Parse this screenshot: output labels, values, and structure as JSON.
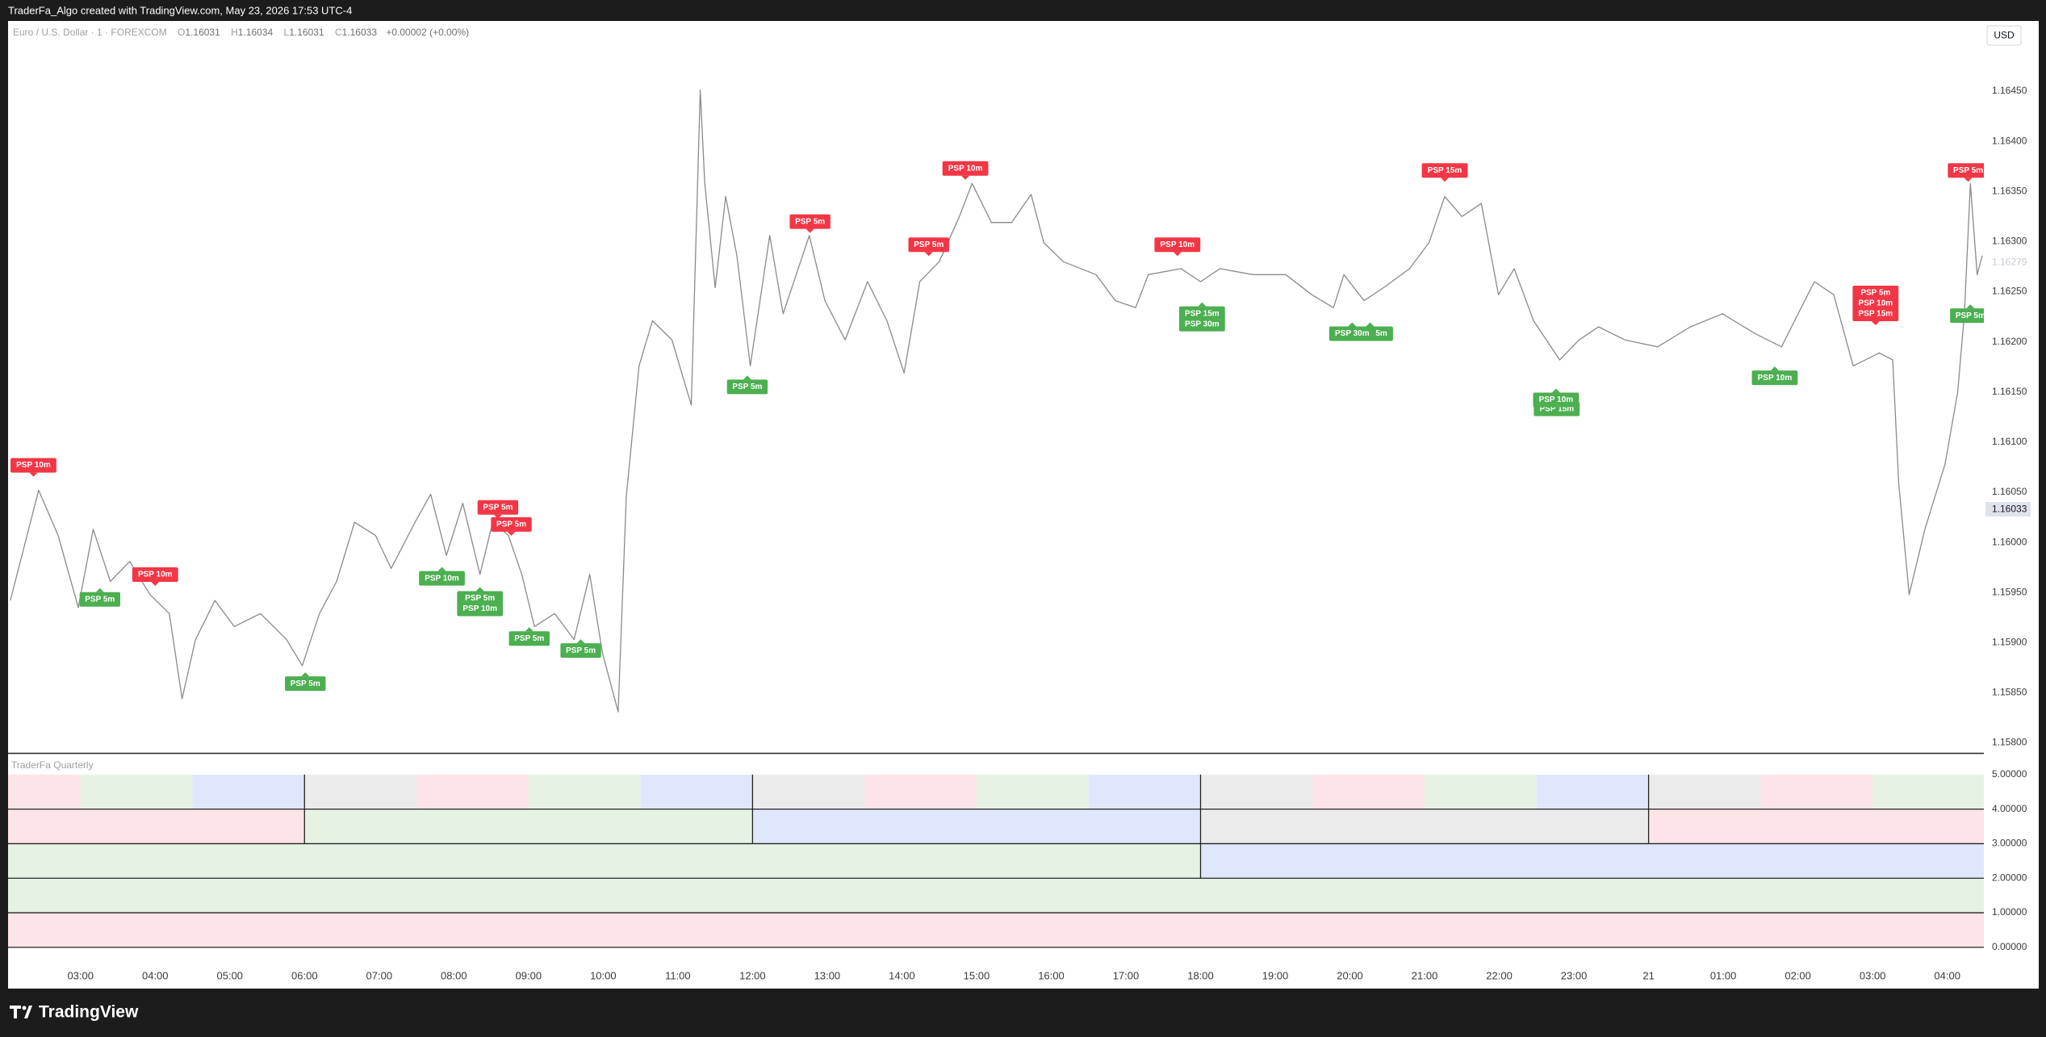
{
  "header": {
    "text": "TraderFa_Algo created with TradingView.com, May 23, 2026 17:53 UTC-4"
  },
  "currency_button": "USD",
  "footer": {
    "brand": "TradingView"
  },
  "chart_data": [
    {
      "type": "line",
      "title": "Euro / U.S. Dollar · 1 · FOREXCOM",
      "ohlc": [
        {
          "key": "O",
          "value": 1.16031
        },
        {
          "key": "H",
          "value": 1.16034
        },
        {
          "key": "L",
          "value": 1.16031
        },
        {
          "key": "C",
          "value": 1.16033
        }
      ],
      "change": "+0.00002 (+0.00%)",
      "xlim": [
        2.03,
        28.49
      ],
      "xticks": [
        {
          "value": 3,
          "label": "03:00"
        },
        {
          "value": 4,
          "label": "04:00"
        },
        {
          "value": 5,
          "label": "05:00"
        },
        {
          "value": 6,
          "label": "06:00"
        },
        {
          "value": 7,
          "label": "07:00"
        },
        {
          "value": 8,
          "label": "08:00"
        },
        {
          "value": 9,
          "label": "09:00"
        },
        {
          "value": 10,
          "label": "10:00"
        },
        {
          "value": 11,
          "label": "11:00"
        },
        {
          "value": 12,
          "label": "12:00"
        },
        {
          "value": 13,
          "label": "13:00"
        },
        {
          "value": 14,
          "label": "14:00"
        },
        {
          "value": 15,
          "label": "15:00"
        },
        {
          "value": 16,
          "label": "16:00"
        },
        {
          "value": 17,
          "label": "17:00"
        },
        {
          "value": 18,
          "label": "18:00"
        },
        {
          "value": 19,
          "label": "19:00"
        },
        {
          "value": 20,
          "label": "20:00"
        },
        {
          "value": 21,
          "label": "21:00"
        },
        {
          "value": 22,
          "label": "22:00"
        },
        {
          "value": 23,
          "label": "23:00"
        },
        {
          "value": 24,
          "label": "21"
        },
        {
          "value": 25,
          "label": "01:00"
        },
        {
          "value": 26,
          "label": "02:00"
        },
        {
          "value": 27,
          "label": "03:00"
        },
        {
          "value": 28,
          "label": "04:00"
        }
      ],
      "ylim": [
        1.1579,
        1.1652
      ],
      "yticks": [
        {
          "value": 1.158,
          "label": "1.15800"
        },
        {
          "value": 1.1585,
          "label": "1.15850"
        },
        {
          "value": 1.159,
          "label": "1.15900"
        },
        {
          "value": 1.1595,
          "label": "1.15950"
        },
        {
          "value": 1.16,
          "label": "1.16000"
        },
        {
          "value": 1.1605,
          "label": "1.16050"
        },
        {
          "value": 1.161,
          "label": "1.16100"
        },
        {
          "value": 1.1615,
          "label": "1.16150"
        },
        {
          "value": 1.162,
          "label": "1.16200"
        },
        {
          "value": 1.1625,
          "label": "1.16250"
        },
        {
          "value": 1.163,
          "label": "1.16300"
        },
        {
          "value": 1.1635,
          "label": "1.16350"
        },
        {
          "value": 1.164,
          "label": "1.16400"
        },
        {
          "value": 1.1645,
          "label": "1.16450"
        }
      ],
      "grid": false,
      "price_labels": [
        {
          "value": 1.16279,
          "style": "faint"
        },
        {
          "value": 1.16033,
          "style": "last"
        }
      ],
      "x": [
        2.06,
        2.44,
        2.7,
        2.97,
        3.17,
        3.4,
        3.66,
        3.93,
        4.19,
        4.36,
        4.54,
        4.8,
        5.06,
        5.41,
        5.76,
        5.97,
        6.2,
        6.43,
        6.67,
        6.95,
        7.16,
        7.48,
        7.69,
        7.9,
        8.12,
        8.35,
        8.52,
        8.73,
        8.91,
        9.08,
        9.35,
        9.61,
        9.82,
        9.99,
        10.2,
        10.31,
        10.48,
        10.66,
        10.92,
        11.18,
        11.3,
        11.36,
        11.5,
        11.64,
        11.79,
        11.97,
        12.23,
        12.41,
        12.76,
        12.97,
        13.24,
        13.54,
        13.8,
        14.03,
        14.24,
        14.5,
        14.77,
        14.94,
        15.2,
        15.47,
        15.73,
        15.9,
        16.16,
        16.6,
        16.86,
        17.13,
        17.3,
        17.74,
        18.0,
        18.26,
        18.7,
        19.14,
        19.49,
        19.78,
        19.92,
        20.19,
        20.45,
        20.8,
        21.06,
        21.27,
        21.5,
        21.76,
        21.99,
        22.2,
        22.46,
        22.81,
        23.07,
        23.33,
        23.68,
        24.12,
        24.56,
        24.99,
        25.43,
        25.78,
        26.22,
        26.48,
        26.74,
        27.09,
        27.27,
        27.35,
        27.49,
        27.7,
        27.97,
        28.14,
        28.23,
        28.31,
        28.4,
        28.47
      ],
      "series": [
        {
          "color": "#8a8a8a",
          "values": [
            1.15942,
            1.16052,
            1.16007,
            1.15935,
            1.16013,
            1.15961,
            1.15981,
            1.15948,
            1.15929,
            1.15844,
            1.15903,
            1.15942,
            1.15916,
            1.15929,
            1.15903,
            1.15877,
            1.15929,
            1.15961,
            1.1602,
            1.16007,
            1.15974,
            1.1602,
            1.16048,
            1.15987,
            1.16039,
            1.15968,
            1.1602,
            1.16007,
            1.15968,
            1.15916,
            1.15929,
            1.15903,
            1.15968,
            1.1589,
            1.15831,
            1.16046,
            1.16176,
            1.16221,
            1.16202,
            1.16137,
            1.16451,
            1.16358,
            1.16254,
            1.16345,
            1.16286,
            1.16176,
            1.16306,
            1.16228,
            1.16306,
            1.16241,
            1.16202,
            1.1626,
            1.16221,
            1.16169,
            1.1626,
            1.1628,
            1.16325,
            1.16358,
            1.16319,
            1.16319,
            1.16347,
            1.16299,
            1.1628,
            1.16267,
            1.16241,
            1.16234,
            1.16267,
            1.16273,
            1.1626,
            1.16273,
            1.16267,
            1.16267,
            1.16247,
            1.16234,
            1.16267,
            1.16241,
            1.16254,
            1.16273,
            1.16299,
            1.16345,
            1.16325,
            1.16338,
            1.16247,
            1.16273,
            1.16221,
            1.16182,
            1.16202,
            1.16215,
            1.16202,
            1.16195,
            1.16215,
            1.16228,
            1.16208,
            1.16195,
            1.1626,
            1.16247,
            1.16176,
            1.16189,
            1.16182,
            1.16059,
            1.15948,
            1.16013,
            1.16078,
            1.1615,
            1.16228,
            1.16358,
            1.16267,
            1.16286
          ]
        }
      ],
      "markers": [
        {
          "x": 2.37,
          "value": 1.16064,
          "labels": [
            "PSP 10m"
          ],
          "color": "#f23645",
          "position": "above"
        },
        {
          "x": 4.0,
          "value": 1.15955,
          "labels": [
            "PSP 10m"
          ],
          "color": "#f23645",
          "position": "above"
        },
        {
          "x": 8.59,
          "value": 1.16022,
          "labels": [
            "PSP 5m"
          ],
          "color": "#f23645",
          "position": "above"
        },
        {
          "x": 8.77,
          "value": 1.16005,
          "labels": [
            "PSP 5m"
          ],
          "color": "#f23645",
          "position": "above"
        },
        {
          "x": 12.77,
          "value": 1.16307,
          "labels": [
            "PSP 5m"
          ],
          "color": "#f23645",
          "position": "above"
        },
        {
          "x": 14.36,
          "value": 1.16284,
          "labels": [
            "PSP 5m"
          ],
          "color": "#f23645",
          "position": "above"
        },
        {
          "x": 14.85,
          "value": 1.1636,
          "labels": [
            "PSP 10m"
          ],
          "color": "#f23645",
          "position": "above"
        },
        {
          "x": 17.69,
          "value": 1.16284,
          "labels": [
            "PSP 10m"
          ],
          "color": "#f23645",
          "position": "above"
        },
        {
          "x": 21.27,
          "value": 1.16358,
          "labels": [
            "PSP 15m"
          ],
          "color": "#f23645",
          "position": "above"
        },
        {
          "x": 27.04,
          "value": 1.16215,
          "labels": [
            "PSP 5m",
            "PSP 10m",
            "PSP 15m"
          ],
          "color": "#f23645",
          "position": "above"
        },
        {
          "x": 28.28,
          "value": 1.16358,
          "labels": [
            "PSP 5m"
          ],
          "color": "#f23645",
          "position": "above"
        },
        {
          "x": 3.26,
          "value": 1.15956,
          "labels": [
            "PSP 5m"
          ],
          "color": "#4caf50",
          "position": "below"
        },
        {
          "x": 6.01,
          "value": 1.15872,
          "labels": [
            "PSP 5m"
          ],
          "color": "#4caf50",
          "position": "below"
        },
        {
          "x": 7.84,
          "value": 1.15977,
          "labels": [
            "PSP 10m"
          ],
          "color": "#4caf50",
          "position": "below"
        },
        {
          "x": 8.35,
          "value": 1.15957,
          "labels": [
            "PSP 5m",
            "PSP 10m"
          ],
          "color": "#4caf50",
          "position": "below"
        },
        {
          "x": 9.01,
          "value": 1.15917,
          "labels": [
            "PSP 5m"
          ],
          "color": "#4caf50",
          "position": "below"
        },
        {
          "x": 9.7,
          "value": 1.15905,
          "labels": [
            "PSP 5m"
          ],
          "color": "#4caf50",
          "position": "below"
        },
        {
          "x": 11.93,
          "value": 1.16168,
          "labels": [
            "PSP 5m"
          ],
          "color": "#4caf50",
          "position": "below"
        },
        {
          "x": 18.02,
          "value": 1.16241,
          "labels": [
            "PSP 15m",
            "PSP 30m"
          ],
          "color": "#4caf50",
          "position": "below"
        },
        {
          "x": 20.27,
          "value": 1.16221,
          "labels": [
            "PSP 15m"
          ],
          "color": "#4caf50",
          "position": "below"
        },
        {
          "x": 20.03,
          "value": 1.16221,
          "labels": [
            "PSP 30m"
          ],
          "color": "#4caf50",
          "position": "below"
        },
        {
          "x": 22.77,
          "value": 1.16146,
          "labels": [
            "PSP 15m"
          ],
          "color": "#4caf50",
          "position": "below"
        },
        {
          "x": 22.76,
          "value": 1.16155,
          "labels": [
            "PSP 10m"
          ],
          "color": "#4caf50",
          "position": "below"
        },
        {
          "x": 25.69,
          "value": 1.16177,
          "labels": [
            "PSP 10m"
          ],
          "color": "#4caf50",
          "position": "below"
        },
        {
          "x": 28.31,
          "value": 1.16239,
          "labels": [
            "PSP 5m"
          ],
          "color": "#4caf50",
          "position": "below"
        }
      ]
    },
    {
      "type": "band",
      "title": "TraderFa Quarterly",
      "ylim": [
        -0.54,
        5.58
      ],
      "yticks": [
        {
          "value": 5,
          "label": "5.00000"
        },
        {
          "value": 4,
          "label": "4.00000"
        },
        {
          "value": 3,
          "label": "3.00000"
        },
        {
          "value": 2,
          "label": "2.00000"
        },
        {
          "value": 1,
          "label": "1.00000"
        },
        {
          "value": 0,
          "label": "0.00000"
        }
      ],
      "rows": [
        {
          "level": 5,
          "segments": [
            {
              "from": 2.03,
              "to": 3,
              "color": "#fde4e6"
            },
            {
              "from": 3,
              "to": 4.5,
              "color": "#e6f3e4"
            },
            {
              "from": 4.5,
              "to": 6,
              "color": "#e0e6fb"
            },
            {
              "from": 6,
              "to": 7.5,
              "color": "#ebebec"
            },
            {
              "from": 7.5,
              "to": 9,
              "color": "#fde4e6"
            },
            {
              "from": 9,
              "to": 10.5,
              "color": "#e6f3e4"
            },
            {
              "from": 10.5,
              "to": 12,
              "color": "#e0e6fb"
            },
            {
              "from": 12,
              "to": 13.5,
              "color": "#ebebec"
            },
            {
              "from": 13.5,
              "to": 15,
              "color": "#fde4e6"
            },
            {
              "from": 15,
              "to": 16.5,
              "color": "#e6f3e4"
            },
            {
              "from": 16.5,
              "to": 18,
              "color": "#e0e6fb"
            },
            {
              "from": 18,
              "to": 19.5,
              "color": "#ebebec"
            },
            {
              "from": 19.5,
              "to": 21,
              "color": "#fde4e6"
            },
            {
              "from": 21,
              "to": 22.5,
              "color": "#e6f3e4"
            },
            {
              "from": 22.5,
              "to": 24,
              "color": "#e0e6fb"
            },
            {
              "from": 24,
              "to": 25.5,
              "color": "#ebebec"
            },
            {
              "from": 25.5,
              "to": 27,
              "color": "#fde4e6"
            },
            {
              "from": 27,
              "to": 28.49,
              "color": "#e6f3e4"
            }
          ]
        },
        {
          "level": 4,
          "segments": [
            {
              "from": 2.03,
              "to": 6,
              "color": "#fde4e6"
            },
            {
              "from": 6,
              "to": 12,
              "color": "#e6f3e4"
            },
            {
              "from": 12,
              "to": 18,
              "color": "#e0e6fb"
            },
            {
              "from": 18,
              "to": 24,
              "color": "#ebebec"
            },
            {
              "from": 24,
              "to": 28.49,
              "color": "#fde4e6"
            }
          ]
        },
        {
          "level": 3,
          "segments": [
            {
              "from": 2.03,
              "to": 18,
              "color": "#e6f3e4"
            },
            {
              "from": 18,
              "to": 28.49,
              "color": "#e0e6fb"
            }
          ]
        },
        {
          "level": 2,
          "segments": [
            {
              "from": 2.03,
              "to": 28.49,
              "color": "#e6f3e4"
            }
          ]
        },
        {
          "level": 1,
          "segments": [
            {
              "from": 2.03,
              "to": 28.49,
              "color": "#fde4e6"
            }
          ]
        }
      ]
    }
  ]
}
